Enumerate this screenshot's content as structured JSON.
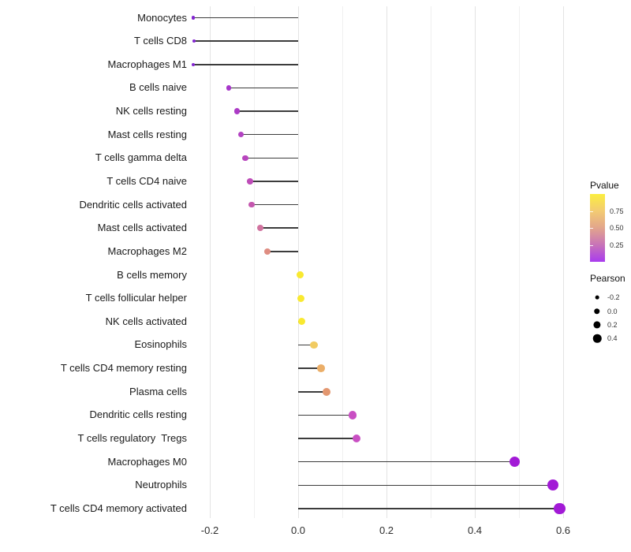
{
  "chart_data": {
    "type": "lollipop",
    "title": "",
    "xlabel": "",
    "ylabel": "",
    "grid": true,
    "xlim": [
      -0.285,
      0.645
    ],
    "x_tick_values": [
      -0.2,
      0.0,
      0.2,
      0.4,
      0.6
    ],
    "x_tick_labels": [
      "-0.2",
      "0.0",
      "0.2",
      "0.4",
      "0.6"
    ],
    "x_minor_gridlines": [
      -0.1,
      0.1,
      0.3,
      0.5
    ],
    "categories": [
      "Monocytes",
      "T cells CD8",
      "Macrophages M1",
      "B cells naive",
      "NK cells resting",
      "Mast cells resting",
      "T cells gamma delta",
      "T cells CD4 naive",
      "Dendritic cells activated",
      "Mast cells activated",
      "Macrophages M2",
      "B cells memory",
      "T cells follicular helper",
      "NK cells activated",
      "Eosinophils",
      "T cells CD4 memory resting",
      "Plasma cells",
      "Dendritic cells resting",
      "T cells regulatory  Tregs",
      "Macrophages M0",
      "Neutrophils",
      "T cells CD4 memory activated"
    ],
    "series": [
      {
        "name": "Pearson",
        "values": [
          -0.238,
          -0.236,
          -0.237,
          -0.157,
          -0.138,
          -0.129,
          -0.12,
          -0.109,
          -0.105,
          -0.086,
          -0.069,
          0.004,
          0.006,
          0.008,
          0.036,
          0.052,
          0.064,
          0.123,
          0.132,
          0.49,
          0.577,
          0.592
        ]
      }
    ],
    "point_colors": [
      "#8326D1",
      "#8326D1",
      "#8326D1",
      "#A737CA",
      "#AC3BC6",
      "#B342C2",
      "#B846BE",
      "#BE4CB8",
      "#C456AE",
      "#D1739F",
      "#DF8D82",
      "#F9E930",
      "#F9E930",
      "#F9E930",
      "#F1CB62",
      "#EBAE68",
      "#E39770",
      "#C94FC3",
      "#C94FC3",
      "#A21AD6",
      "#A21AD6",
      "#A21AD6"
    ],
    "stem_color": "#3c3c3c",
    "legend": {
      "pvalue": {
        "title": "Pvalue",
        "tick_labels": [
          "0.75",
          "0.50",
          "0.25"
        ],
        "tick_values": [
          0.75,
          0.5,
          0.25
        ],
        "range": [
          0,
          1
        ],
        "gradient_top_to_bottom": [
          "#FBEE3F",
          "#F3CB72",
          "#E2A58C",
          "#C873B8",
          "#A93BEE"
        ]
      },
      "pearson": {
        "title": "Pearson",
        "entries": [
          {
            "label": "-0.2",
            "value": -0.2
          },
          {
            "label": "0.0",
            "value": 0.0
          },
          {
            "label": "0.2",
            "value": 0.2
          },
          {
            "label": "0.4",
            "value": 0.4
          }
        ],
        "dot_color": "#000000"
      }
    }
  }
}
